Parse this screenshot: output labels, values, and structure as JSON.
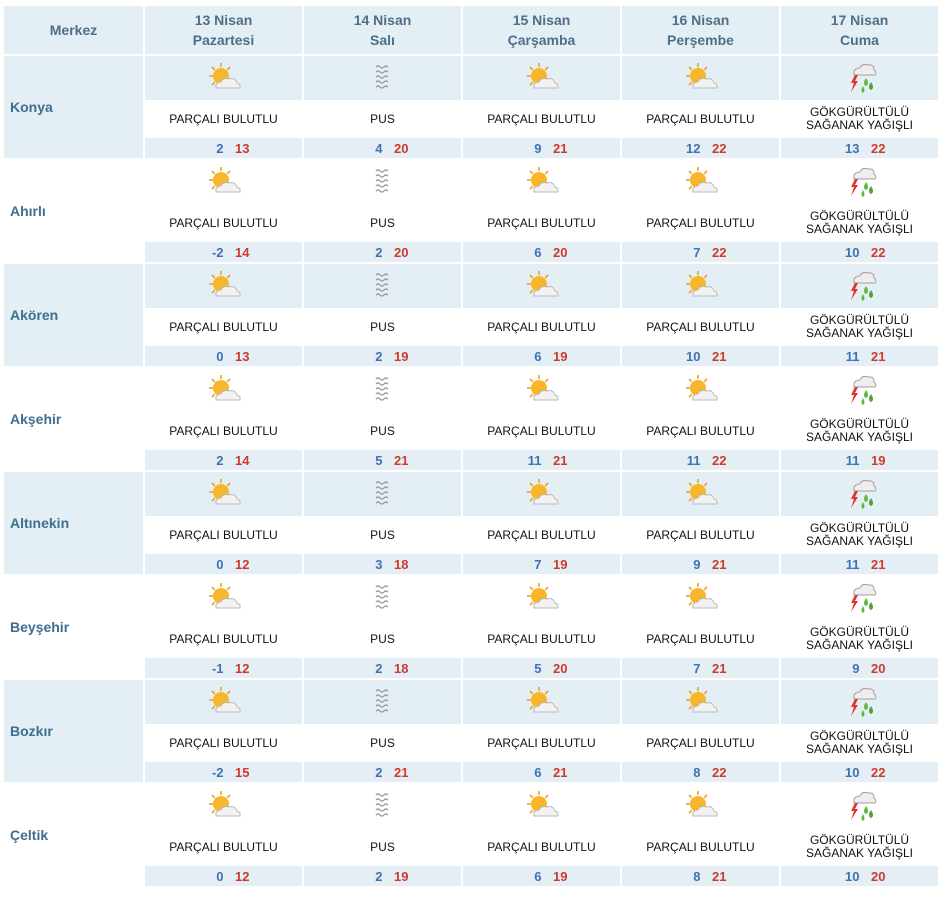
{
  "header": {
    "merkez": "Merkez",
    "days": [
      {
        "date": "13 Nisan",
        "day": "Pazartesi"
      },
      {
        "date": "14 Nisan",
        "day": "Salı"
      },
      {
        "date": "15 Nisan",
        "day": "Çarşamba"
      },
      {
        "date": "16 Nisan",
        "day": "Perşembe"
      },
      {
        "date": "17 Nisan",
        "day": "Cuma"
      }
    ]
  },
  "conditions": {
    "partly_cloudy": "PARÇALI BULUTLU",
    "mist": "PUS",
    "storm_line1": "GÖKGÜRÜLTÜLÜ",
    "storm_line2": "SAĞANAK YAĞIŞLI"
  },
  "icons": {
    "partly_cloudy": "sun-cloud-icon",
    "mist": "mist-icon",
    "storm": "thunderstorm-rain-icon"
  },
  "colors": {
    "min_temp": "#3f72b0",
    "max_temp": "#d0392e",
    "row_bg": "#e4eef5",
    "city_text": "#3f6e8e"
  },
  "cities": [
    {
      "name": "Konya",
      "temps": [
        [
          2,
          13
        ],
        [
          4,
          20
        ],
        [
          9,
          21
        ],
        [
          12,
          22
        ],
        [
          13,
          22
        ]
      ]
    },
    {
      "name": "Ahırlı",
      "temps": [
        [
          -2,
          14
        ],
        [
          2,
          20
        ],
        [
          6,
          20
        ],
        [
          7,
          22
        ],
        [
          10,
          22
        ]
      ]
    },
    {
      "name": "Akören",
      "temps": [
        [
          0,
          13
        ],
        [
          2,
          19
        ],
        [
          6,
          19
        ],
        [
          10,
          21
        ],
        [
          11,
          21
        ]
      ]
    },
    {
      "name": "Akşehir",
      "temps": [
        [
          2,
          14
        ],
        [
          5,
          21
        ],
        [
          11,
          21
        ],
        [
          11,
          22
        ],
        [
          11,
          19
        ]
      ]
    },
    {
      "name": "Altınekin",
      "temps": [
        [
          0,
          12
        ],
        [
          3,
          18
        ],
        [
          7,
          19
        ],
        [
          9,
          21
        ],
        [
          11,
          21
        ]
      ]
    },
    {
      "name": "Beyşehir",
      "temps": [
        [
          -1,
          12
        ],
        [
          2,
          18
        ],
        [
          5,
          20
        ],
        [
          7,
          21
        ],
        [
          9,
          20
        ]
      ]
    },
    {
      "name": "Bozkır",
      "temps": [
        [
          -2,
          15
        ],
        [
          2,
          21
        ],
        [
          6,
          21
        ],
        [
          8,
          22
        ],
        [
          10,
          22
        ]
      ]
    },
    {
      "name": "Çeltik",
      "temps": [
        [
          0,
          12
        ],
        [
          2,
          19
        ],
        [
          6,
          19
        ],
        [
          8,
          21
        ],
        [
          10,
          20
        ]
      ]
    }
  ],
  "day_conditions": [
    "partly_cloudy",
    "mist",
    "partly_cloudy",
    "partly_cloudy",
    "storm"
  ]
}
